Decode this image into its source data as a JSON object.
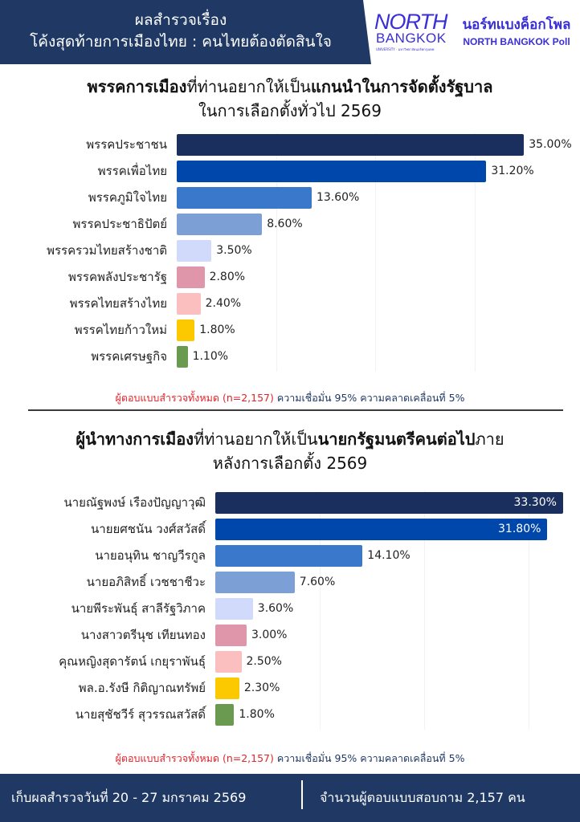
{
  "header": {
    "title_line1": "ผลสำรวจเรื่อง",
    "title_line2": "โค้งสุดท้ายการเมืองไทย : คนไทยต้องตัดสินใจ",
    "logo_north": "NORTH",
    "logo_bangkok": "BANGKOK",
    "logo_sub": "UNIVERSITY · มหาวิทยาลัยนอร์ทกรุงเทพ",
    "poll_name_th": "นอร์ทแบงค็อกโพล",
    "poll_name_en": "NORTH BANGKOK Poll"
  },
  "colors": {
    "navy": "#1f3864",
    "red_note": "#e0242b",
    "logo_blue": "#3a2fd6",
    "bar_colors": [
      "#1b2f5e",
      "#0047ab",
      "#3a78cc",
      "#7c9fd6",
      "#d1dafb",
      "#e096aa",
      "#fbbfbf",
      "#fcc800",
      "#6a9a4f"
    ]
  },
  "chart1": {
    "title_bold1": "พรรคการเมือง",
    "title_normal1": "ที่ท่านอยากให้เป็น",
    "title_bold2": "แกนนำในการจัดตั้งรัฐบาล",
    "title_line2": "ในการเลือกตั้งทั่วไป 2569",
    "note_red": "ผู้ตอบแบบสำรวจทั้งหมด (n=2,157)",
    "note_navy": " ความเชื่อมั่น 95% ความคลาดเคลื่อนที่ 5%"
  },
  "chart2": {
    "title_bold1": "ผู้นำทางการเมือง",
    "title_normal1": "ที่ท่านอยากให้เป็น",
    "title_bold2": "นายกรัฐมนตรีคนต่อไป",
    "title_normal2": "ภาย",
    "title_line2": "หลังการเลือกตั้ง 2569",
    "note_red": "ผู้ตอบแบบสำรวจทั้งหมด (n=2,157)",
    "note_navy": " ความเชื่อมั่น 95% ความคลาดเคลื่อนที่ 5%"
  },
  "chart_data": [
    {
      "type": "bar",
      "orientation": "horizontal",
      "title": "พรรคการเมืองที่ท่านอยากให้เป็นแกนนำในการจัดตั้งรัฐบาล ในการเลือกตั้งทั่วไป 2569",
      "categories": [
        "พรรคประชาชน",
        "พรรคเพื่อไทย",
        "พรรคภูมิใจไทย",
        "พรรคประชาธิปัตย์",
        "พรรครวมไทยสร้างชาติ",
        "พรรคพลังประชารัฐ",
        "พรรคไทยสร้างไทย",
        "พรรคไทยก้าวใหม่",
        "พรรคเศรษฐกิจ"
      ],
      "values": [
        35.0,
        31.2,
        13.6,
        8.6,
        3.5,
        2.8,
        2.4,
        1.8,
        1.1
      ],
      "labels": [
        "35.00%",
        "31.20%",
        "13.60%",
        "8.60%",
        "3.50%",
        "2.80%",
        "2.40%",
        "1.80%",
        "1.10%"
      ],
      "xlabel": "",
      "ylabel": "",
      "unit": "%",
      "grid": true,
      "legend": "none"
    },
    {
      "type": "bar",
      "orientation": "horizontal",
      "title": "ผู้นำทางการเมืองที่ท่านอยากให้เป็นนายกรัฐมนตรีคนต่อไปภายหลังการเลือกตั้ง 2569",
      "categories": [
        "นายณัฐพงษ์ เรืองปัญญาวุฒิ",
        "นายยศชนัน วงศ์สวัสดิ์",
        "นายอนุทิน ชาญวีรกูล",
        "นายอภิสิทธิ์ เวชชาชีวะ",
        "นายพีระพันธุ์ สาลีรัฐวิภาค",
        "นางสาวตรีนุช เทียนทอง",
        "คุณหญิงสุดารัตน์ เกยุราพันธุ์",
        "พล.อ.รังษี กิติญาณทรัพย์",
        "นายสุชัชวีร์ สุวรรณสวัสดิ์"
      ],
      "values": [
        33.3,
        31.8,
        14.1,
        7.6,
        3.6,
        3.0,
        2.5,
        2.3,
        1.8
      ],
      "labels": [
        "33.30%",
        "31.80%",
        "14.10%",
        "7.60%",
        "3.60%",
        "3.00%",
        "2.50%",
        "2.30%",
        "1.80%"
      ],
      "xlabel": "",
      "ylabel": "",
      "unit": "%",
      "grid": true,
      "legend": "none"
    }
  ],
  "footer": {
    "left": "เก็บผลสำรวจวันที่ 20 - 27 มกราคม 2569",
    "right": "จำนวนผู้ตอบแบบสอบถาม 2,157 คน"
  }
}
